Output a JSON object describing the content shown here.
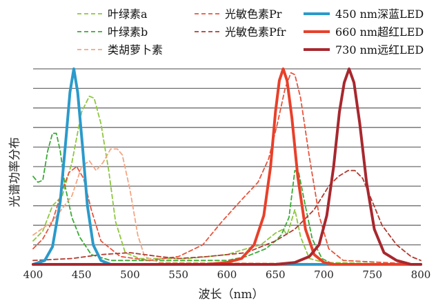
{
  "chart_data": {
    "type": "line",
    "title": "",
    "xlabel": "波长（nm）",
    "ylabel": "光谱功率分布",
    "xlim": [
      400,
      800
    ],
    "ylim": [
      0,
      1
    ],
    "x_ticks": [
      400,
      450,
      500,
      550,
      600,
      650,
      700,
      750,
      800
    ],
    "grid": "horizontal",
    "legend_position": "top",
    "series": [
      {
        "name": "叶绿素a",
        "style": "dashed",
        "color": "#8dc63f",
        "points": [
          [
            400,
            0.12
          ],
          [
            410,
            0.17
          ],
          [
            420,
            0.3
          ],
          [
            430,
            0.35
          ],
          [
            440,
            0.52
          ],
          [
            450,
            0.78
          ],
          [
            458,
            0.86
          ],
          [
            463,
            0.85
          ],
          [
            470,
            0.72
          ],
          [
            478,
            0.48
          ],
          [
            485,
            0.22
          ],
          [
            495,
            0.06
          ],
          [
            510,
            0.03
          ],
          [
            560,
            0.03
          ],
          [
            600,
            0.05
          ],
          [
            620,
            0.08
          ],
          [
            635,
            0.1
          ],
          [
            650,
            0.16
          ],
          [
            658,
            0.18
          ],
          [
            662,
            0.15
          ],
          [
            670,
            0.28
          ],
          [
            676,
            0.14
          ],
          [
            685,
            0.03
          ],
          [
            700,
            0.01
          ],
          [
            800,
            0
          ]
        ]
      },
      {
        "name": "叶绿素b",
        "style": "dashed",
        "color": "#3aaa35",
        "points": [
          [
            400,
            0.45
          ],
          [
            405,
            0.42
          ],
          [
            410,
            0.43
          ],
          [
            415,
            0.58
          ],
          [
            420,
            0.67
          ],
          [
            424,
            0.67
          ],
          [
            428,
            0.58
          ],
          [
            433,
            0.4
          ],
          [
            440,
            0.24
          ],
          [
            448,
            0.14
          ],
          [
            460,
            0.05
          ],
          [
            480,
            0.02
          ],
          [
            560,
            0.02
          ],
          [
            600,
            0.02
          ],
          [
            620,
            0.04
          ],
          [
            640,
            0.08
          ],
          [
            650,
            0.12
          ],
          [
            656,
            0.15
          ],
          [
            664,
            0.24
          ],
          [
            670,
            0.48
          ],
          [
            674,
            0.47
          ],
          [
            680,
            0.32
          ],
          [
            688,
            0.13
          ],
          [
            698,
            0.03
          ],
          [
            710,
            0
          ],
          [
            800,
            0
          ]
        ]
      },
      {
        "name": "类胡萝卜素",
        "style": "dashed",
        "color": "#f4a582",
        "points": [
          [
            400,
            0.15
          ],
          [
            420,
            0.22
          ],
          [
            440,
            0.35
          ],
          [
            450,
            0.5
          ],
          [
            458,
            0.53
          ],
          [
            465,
            0.48
          ],
          [
            472,
            0.52
          ],
          [
            480,
            0.59
          ],
          [
            487,
            0.59
          ],
          [
            492,
            0.56
          ],
          [
            500,
            0.38
          ],
          [
            508,
            0.15
          ],
          [
            515,
            0.04
          ],
          [
            530,
            0.01
          ],
          [
            800,
            0
          ]
        ]
      },
      {
        "name": "光敏色素Pr",
        "style": "dashed",
        "color": "#e8543c",
        "points": [
          [
            400,
            0.08
          ],
          [
            410,
            0.13
          ],
          [
            420,
            0.22
          ],
          [
            430,
            0.38
          ],
          [
            437,
            0.47
          ],
          [
            445,
            0.5
          ],
          [
            452,
            0.44
          ],
          [
            460,
            0.28
          ],
          [
            470,
            0.12
          ],
          [
            490,
            0.04
          ],
          [
            520,
            0.02
          ],
          [
            550,
            0.04
          ],
          [
            575,
            0.1
          ],
          [
            595,
            0.22
          ],
          [
            615,
            0.33
          ],
          [
            632,
            0.42
          ],
          [
            643,
            0.54
          ],
          [
            652,
            0.72
          ],
          [
            660,
            0.9
          ],
          [
            666,
            0.98
          ],
          [
            670,
            0.97
          ],
          [
            676,
            0.85
          ],
          [
            685,
            0.55
          ],
          [
            695,
            0.25
          ],
          [
            705,
            0.08
          ],
          [
            720,
            0.02
          ],
          [
            800,
            0
          ]
        ]
      },
      {
        "name": "光敏色素Pfr",
        "style": "dashed",
        "color": "#b03a2e",
        "points": [
          [
            400,
            0.02
          ],
          [
            440,
            0.03
          ],
          [
            470,
            0.05
          ],
          [
            500,
            0.06
          ],
          [
            530,
            0.04
          ],
          [
            550,
            0.03
          ],
          [
            580,
            0.04
          ],
          [
            620,
            0.06
          ],
          [
            650,
            0.12
          ],
          [
            670,
            0.18
          ],
          [
            690,
            0.28
          ],
          [
            705,
            0.4
          ],
          [
            715,
            0.45
          ],
          [
            725,
            0.48
          ],
          [
            732,
            0.48
          ],
          [
            740,
            0.44
          ],
          [
            750,
            0.32
          ],
          [
            760,
            0.2
          ],
          [
            775,
            0.1
          ],
          [
            790,
            0.04
          ],
          [
            800,
            0.02
          ]
        ]
      },
      {
        "name": "450 nm深蓝LED",
        "style": "solid",
        "color": "#2b9acb",
        "points": [
          [
            400,
            0
          ],
          [
            412,
            0.02
          ],
          [
            420,
            0.09
          ],
          [
            428,
            0.32
          ],
          [
            434,
            0.65
          ],
          [
            438,
            0.88
          ],
          [
            442,
            1.0
          ],
          [
            446,
            0.88
          ],
          [
            451,
            0.6
          ],
          [
            456,
            0.3
          ],
          [
            462,
            0.1
          ],
          [
            470,
            0.02
          ],
          [
            480,
            0
          ],
          [
            800,
            0
          ]
        ]
      },
      {
        "name": "660 nm超红LED",
        "style": "solid",
        "color": "#e8402a",
        "points": [
          [
            400,
            0
          ],
          [
            580,
            0
          ],
          [
            600,
            0.01
          ],
          [
            615,
            0.03
          ],
          [
            628,
            0.1
          ],
          [
            638,
            0.25
          ],
          [
            645,
            0.5
          ],
          [
            650,
            0.78
          ],
          [
            654,
            0.94
          ],
          [
            658,
            1.0
          ],
          [
            662,
            0.94
          ],
          [
            667,
            0.75
          ],
          [
            673,
            0.45
          ],
          [
            681,
            0.18
          ],
          [
            690,
            0.05
          ],
          [
            700,
            0.01
          ],
          [
            710,
            0
          ],
          [
            800,
            0
          ]
        ]
      },
      {
        "name": "730 nm远红LED",
        "style": "solid",
        "color": "#a7282e",
        "points": [
          [
            400,
            0
          ],
          [
            650,
            0
          ],
          [
            670,
            0.01
          ],
          [
            685,
            0.04
          ],
          [
            695,
            0.1
          ],
          [
            703,
            0.25
          ],
          [
            710,
            0.5
          ],
          [
            716,
            0.78
          ],
          [
            721,
            0.93
          ],
          [
            726,
            1.0
          ],
          [
            731,
            0.93
          ],
          [
            737,
            0.72
          ],
          [
            744,
            0.42
          ],
          [
            752,
            0.18
          ],
          [
            762,
            0.06
          ],
          [
            775,
            0.02
          ],
          [
            790,
            0
          ],
          [
            800,
            0
          ]
        ]
      }
    ]
  }
}
